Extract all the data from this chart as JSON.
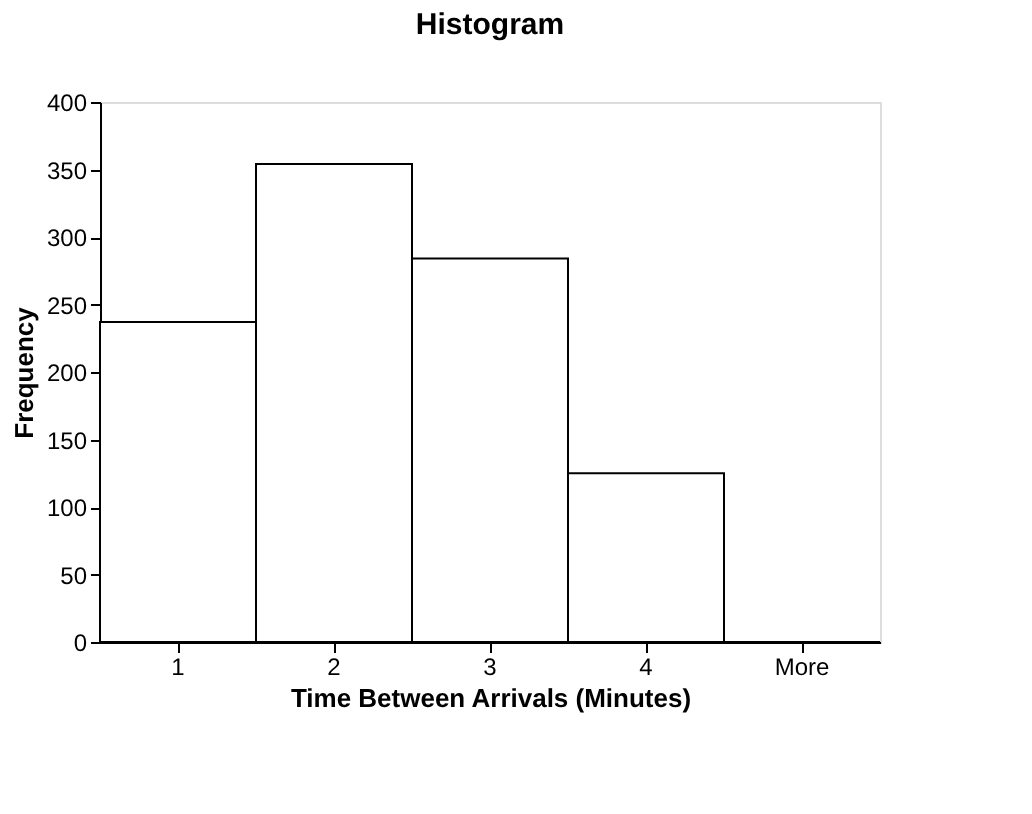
{
  "chart_data": {
    "type": "bar",
    "title": "Histogram",
    "xlabel": "Time Between Arrivals (Minutes)",
    "ylabel": "Frequency",
    "categories": [
      "1",
      "2",
      "3",
      "4",
      "More"
    ],
    "values": [
      237,
      354,
      284,
      125,
      0
    ],
    "color": "#ffffff",
    "ylim": [
      0,
      400
    ],
    "yticks": [
      0,
      50,
      100,
      150,
      200,
      250,
      300,
      350,
      400
    ],
    "grid": false
  }
}
